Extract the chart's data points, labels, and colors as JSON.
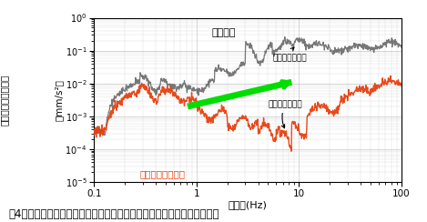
{
  "title": "",
  "xlabel": "周波数(Hz)",
  "ylabel_unit": "（mm/s²）",
  "ylabel_main": "参照信号の測定精度",
  "xlim": [
    0.1,
    100
  ],
  "ylim": [
    1e-05,
    1.0
  ],
  "background_color": "#ffffff",
  "grid_color": "#bbbbbb",
  "label_old": "従来装置",
  "label_new": "今回開発した装置",
  "label_noise": "装置の雑音低減",
  "label_signal": "信号処理の改良",
  "color_old": "#707070",
  "color_new": "#e84010",
  "color_green": "#00dd00",
  "caption": "図4　低雑音レーザー干渉式振動応答評価装置による参照信号の精度向上",
  "caption_fontsize": 8.5
}
